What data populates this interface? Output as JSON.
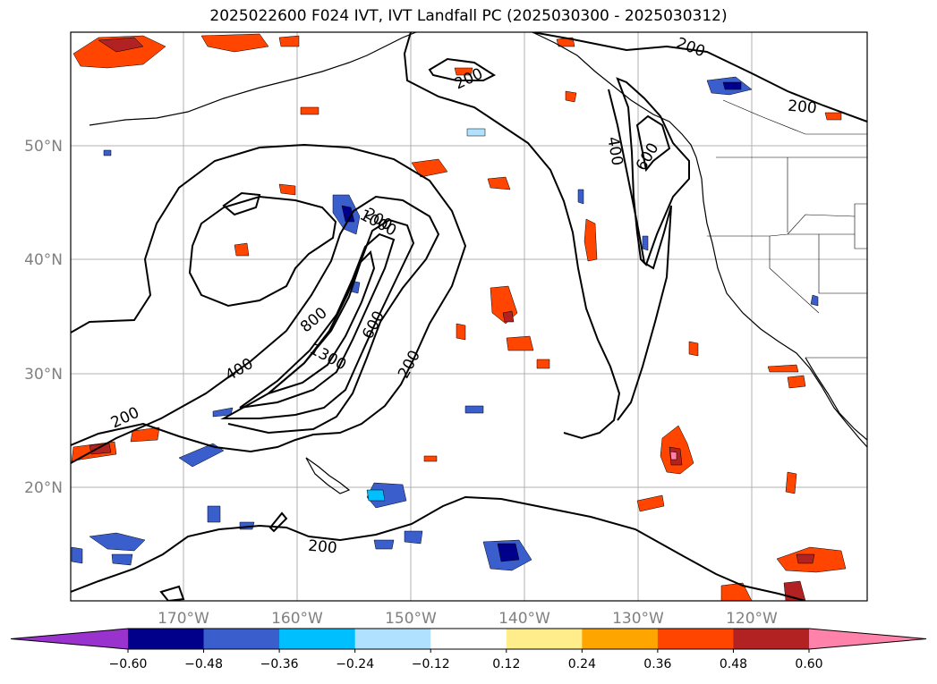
{
  "title": "2025022600 F024 IVT, IVT Landfall PC (2025030300 - 2025030312)",
  "map": {
    "lat_labels": [
      "50°N",
      "40°N",
      "30°N",
      "20°N"
    ],
    "lon_labels": [
      "170°W",
      "160°W",
      "150°W",
      "140°W",
      "130°W",
      "120°W"
    ],
    "contour_labels": [
      "200",
      "200",
      "200",
      "200",
      "200",
      "200",
      "200",
      "400",
      "400",
      "600",
      "600",
      "800",
      "1000",
      "1300"
    ],
    "gridlines": true,
    "colors": {
      "contour": "#000000",
      "coast": "#000000",
      "grid": "#b0b0b0",
      "label": "#808080"
    }
  },
  "colorbar": {
    "ticks": [
      "−0.60",
      "−0.48",
      "−0.36",
      "−0.24",
      "−0.12",
      "0.12",
      "0.24",
      "0.36",
      "0.48",
      "0.60"
    ],
    "colors": [
      "#9a32cd",
      "#00008b",
      "#3a5fcd",
      "#00bfff",
      "#b0e2ff",
      "#ffffff",
      "#ffec8b",
      "#ffa500",
      "#ff4500",
      "#b22222",
      "#ff82ab"
    ]
  }
}
